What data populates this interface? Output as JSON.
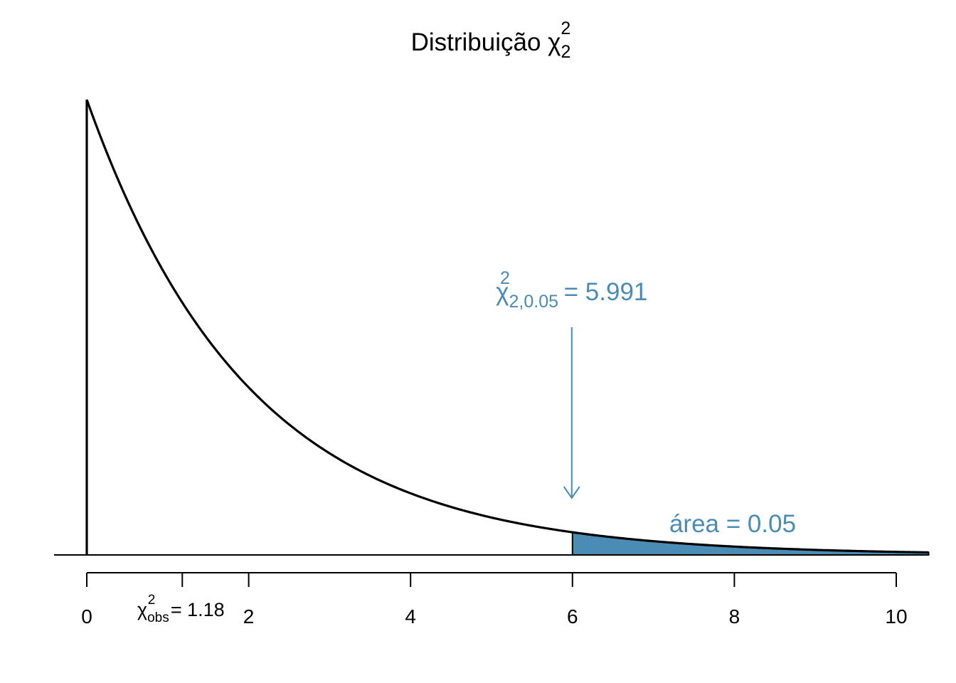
{
  "colors": {
    "curve": "#000000",
    "accent": "#4a8cb4",
    "fill": "#4a8cb4"
  },
  "chart_data": {
    "type": "area",
    "distribution": "chi-square",
    "df": 2,
    "title_prefix": "Distribuição ",
    "title_symbol": "χ",
    "title_sup": "2",
    "title_sub": "2",
    "x_ticks": [
      0,
      2,
      4,
      6,
      8,
      10
    ],
    "x_tick_labels": [
      "0",
      "2",
      "4",
      "6",
      "8",
      "10"
    ],
    "xlim": [
      0,
      10.4
    ],
    "ylim": [
      0,
      0.5
    ],
    "critical": {
      "value": 5.991,
      "symbol": "χ",
      "sup": "2",
      "sub": "2,0.05",
      "text": " = 5.991"
    },
    "shaded_from": 6,
    "area": {
      "text": "área = 0.05",
      "value": 0.05
    },
    "observed": {
      "value": 1.18,
      "symbol": "χ",
      "sup": "2",
      "sub": "obs",
      "text": " = 1.18"
    }
  }
}
